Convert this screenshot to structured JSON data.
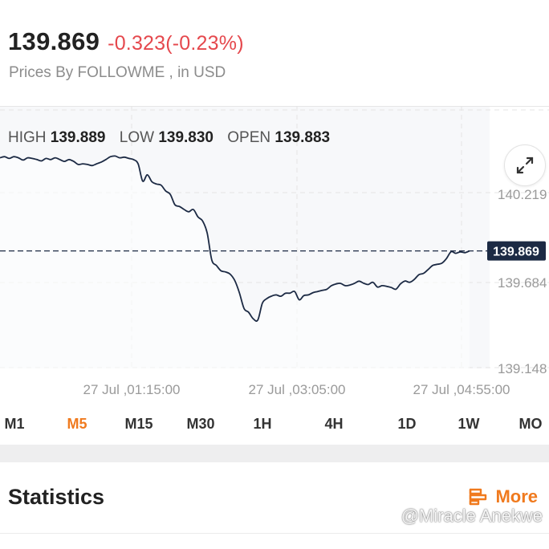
{
  "quote": {
    "price": "139.869",
    "change": "-0.323(-0.23%)",
    "source": "Prices By FOLLOWME , in USD",
    "colors": {
      "down": "#e5484d",
      "accent": "#f07a1e",
      "line": "#1c2a44"
    }
  },
  "ohlc": {
    "high_label": "HIGH",
    "high": "139.889",
    "low_label": "LOW",
    "low": "139.830",
    "open_label": "OPEN",
    "open": "139.883"
  },
  "chart_data": {
    "type": "line",
    "current_price_label": "139.869",
    "current_price": 139.869,
    "yticks": [
      140.219,
      139.684,
      139.148
    ],
    "ytick_labels": [
      "140.219",
      "139.684",
      "139.148"
    ],
    "xtick_labels": [
      "27 Jul ,01:15:00",
      "27 Jul ,03:05:00",
      "27 Jul ,04:55:00"
    ],
    "grid": true,
    "series": [
      {
        "x": [
          0,
          1,
          2,
          3,
          4,
          5,
          6,
          7,
          8,
          9,
          10,
          11,
          12,
          13,
          14,
          15,
          16,
          17,
          18,
          19,
          20,
          21,
          22,
          23,
          24,
          25,
          26,
          27,
          28,
          29,
          30,
          31,
          32,
          33,
          34,
          35,
          36,
          37,
          38,
          39,
          40,
          41,
          42,
          43,
          44,
          45,
          46,
          47,
          48,
          49,
          50,
          51,
          52,
          53,
          54,
          55,
          56,
          57,
          58,
          59,
          60,
          61,
          62,
          63,
          64,
          65,
          66,
          67,
          68,
          69,
          70,
          71,
          72,
          73,
          74,
          75,
          76,
          77,
          78,
          79,
          80,
          81,
          82,
          83,
          84,
          85,
          86,
          87,
          88,
          89,
          90,
          91,
          92,
          93,
          94,
          95,
          96,
          97,
          98,
          99,
          100,
          101,
          102
        ],
        "values": [
          140.444,
          140.451,
          140.44,
          140.451,
          140.444,
          140.43,
          140.444,
          140.44,
          140.433,
          140.425,
          140.44,
          140.433,
          140.444,
          140.433,
          140.422,
          140.433,
          140.422,
          140.403,
          140.407,
          140.403,
          140.396,
          140.407,
          140.418,
          140.433,
          140.451,
          140.455,
          140.444,
          140.448,
          140.44,
          140.433,
          140.407,
          140.3,
          140.339,
          140.296,
          140.282,
          140.275,
          140.239,
          140.218,
          140.154,
          140.143,
          140.125,
          140.111,
          140.125,
          140.079,
          140.054,
          139.98,
          139.814,
          139.779,
          139.746,
          139.739,
          139.725,
          139.686,
          139.611,
          139.514,
          139.49,
          139.45,
          139.442,
          139.546,
          139.575,
          139.59,
          139.597,
          139.589,
          139.607,
          139.608,
          139.618,
          139.567,
          139.593,
          139.597,
          139.611,
          139.618,
          139.625,
          139.632,
          139.654,
          139.665,
          139.668,
          139.654,
          139.658,
          139.668,
          139.682,
          139.669,
          139.661,
          139.675,
          139.646,
          139.654,
          139.65,
          139.643,
          139.632,
          139.665,
          139.683,
          139.675,
          139.693,
          139.722,
          139.73,
          139.754,
          139.779,
          139.786,
          139.793,
          139.822,
          139.864,
          139.854,
          139.863,
          139.858,
          139.869
        ]
      }
    ]
  },
  "timeframes": {
    "active": "M5",
    "items": [
      "M1",
      "M5",
      "M15",
      "M30",
      "1H",
      "4H",
      "1D",
      "1W",
      "MO"
    ]
  },
  "statistics": {
    "title": "Statistics",
    "more_label": "More"
  },
  "watermark": "@Miracle Anekwe"
}
